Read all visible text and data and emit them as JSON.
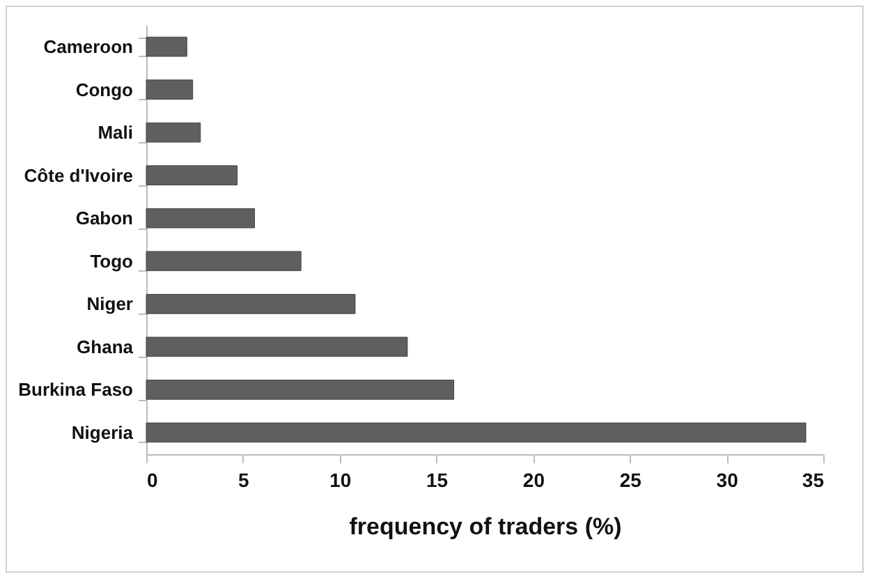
{
  "chart_data": {
    "type": "bar",
    "orientation": "horizontal",
    "xlabel": "frequency of traders (%)",
    "categories": [
      "Cameroon",
      "Congo",
      "Mali",
      "Côte d'Ivoire",
      "Gabon",
      "Togo",
      "Niger",
      "Ghana",
      "Burkina Faso",
      "Nigeria"
    ],
    "values": [
      2.1,
      2.4,
      2.8,
      4.7,
      5.6,
      8.0,
      10.8,
      13.5,
      15.9,
      34.1
    ],
    "color": "#5f5f5f",
    "xlim": [
      0,
      35
    ],
    "xticks": [
      0,
      5,
      10,
      15,
      20,
      25,
      30,
      35
    ],
    "grid": false
  }
}
